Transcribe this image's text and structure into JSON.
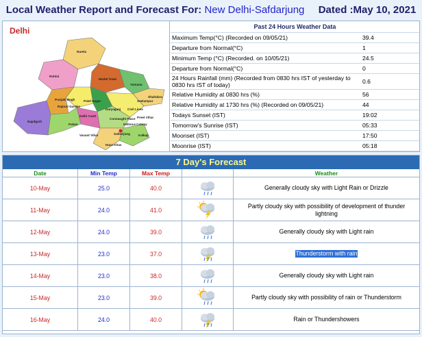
{
  "header": {
    "prefix": "Local Weather Report and Forecast For: ",
    "location": "New Delhi-Safdarjung",
    "dated": "Dated :May 10, 2021"
  },
  "map": {
    "title": "Delhi",
    "districts": [
      "Narela",
      "Rohini",
      "Model Town",
      "Yamuna",
      "Shahdara",
      "Seelampur",
      "Punjabi Bagh",
      "Patel Nagar",
      "Rajouri Garden",
      "Civil Lines",
      "Delhi Cantt",
      "Daryaganj",
      "Najafgarh",
      "Preet Vihar",
      "Connaught Place",
      "Vasant Vihar",
      "Defence Colony",
      "Palam",
      "Kalkaji",
      "Safdarjung",
      "Hauz Khas"
    ]
  },
  "past24": {
    "title": "Past 24 Hours Weather Data",
    "rows": [
      {
        "label": "Maximum Temp(°C) (Recorded on 09/05/21)",
        "value": "39.4"
      },
      {
        "label": "Departure from Normal(°C)",
        "value": "1"
      },
      {
        "label": "Minimum Temp (°C) (Recorded. on 10/05/21)",
        "value": "24.5"
      },
      {
        "label": "Departure from Normal(°C)",
        "value": "0"
      },
      {
        "label": "24 Hours Rainfall (mm) (Recorded from 0830 hrs IST of yesterday to 0830 hrs IST of today)",
        "value": "0.6"
      },
      {
        "label": "Relative Humidity at 0830 hrs (%)",
        "value": "56"
      },
      {
        "label": "Relative Humidity at 1730 hrs (%) (Recorded on 09/05/21)",
        "value": "44"
      },
      {
        "label": "Todays Sunset (IST)",
        "value": "19:02"
      },
      {
        "label": "Tomorrow's Sunrise (IST)",
        "value": "05:33"
      },
      {
        "label": "Moonset (IST)",
        "value": "17:50"
      },
      {
        "label": "Moonrise (IST)",
        "value": "05:18"
      }
    ]
  },
  "forecast": {
    "title": "7 Day's Forecast",
    "columns": {
      "date": "Date",
      "min": "Min Temp",
      "max": "Max Temp",
      "weather": "Weather"
    },
    "rows": [
      {
        "date": "10-May",
        "min": "25.0",
        "max": "40.0",
        "icon": "cloud-rain-icon",
        "weather": "Generally cloudy sky with Light Rain or Drizzle"
      },
      {
        "date": "11-May",
        "min": "24.0",
        "max": "41.0",
        "icon": "sun-cloud-lightning-icon",
        "weather": "Partly cloudy sky with possibility of development of thunder lightning"
      },
      {
        "date": "12-May",
        "min": "24.0",
        "max": "39.0",
        "icon": "cloud-rain-icon",
        "weather": "Generally cloudy sky with Light rain"
      },
      {
        "date": "13-May",
        "min": "23.0",
        "max": "37.0",
        "icon": "thunderstorm-icon",
        "weather": "Thunderstorm with rain"
      },
      {
        "date": "14-May",
        "min": "23.0",
        "max": "38.0",
        "icon": "cloud-rain-icon",
        "weather": "Generally cloudy sky with Light rain"
      },
      {
        "date": "15-May",
        "min": "23.0",
        "max": "39.0",
        "icon": "sun-cloud-rain-icon",
        "weather": "Partly cloudy sky with possibility of rain or Thunderstorm"
      },
      {
        "date": "16-May",
        "min": "24.0",
        "max": "40.0",
        "icon": "thunderstorm-icon",
        "weather": "Rain or Thundershowers"
      }
    ]
  },
  "colors": {
    "title_bar": "#2c6bb3",
    "title_text": "#fff78a",
    "date_red": "#c62828",
    "min_blue": "#1f2acc",
    "highlight": "#2f6fd6"
  }
}
